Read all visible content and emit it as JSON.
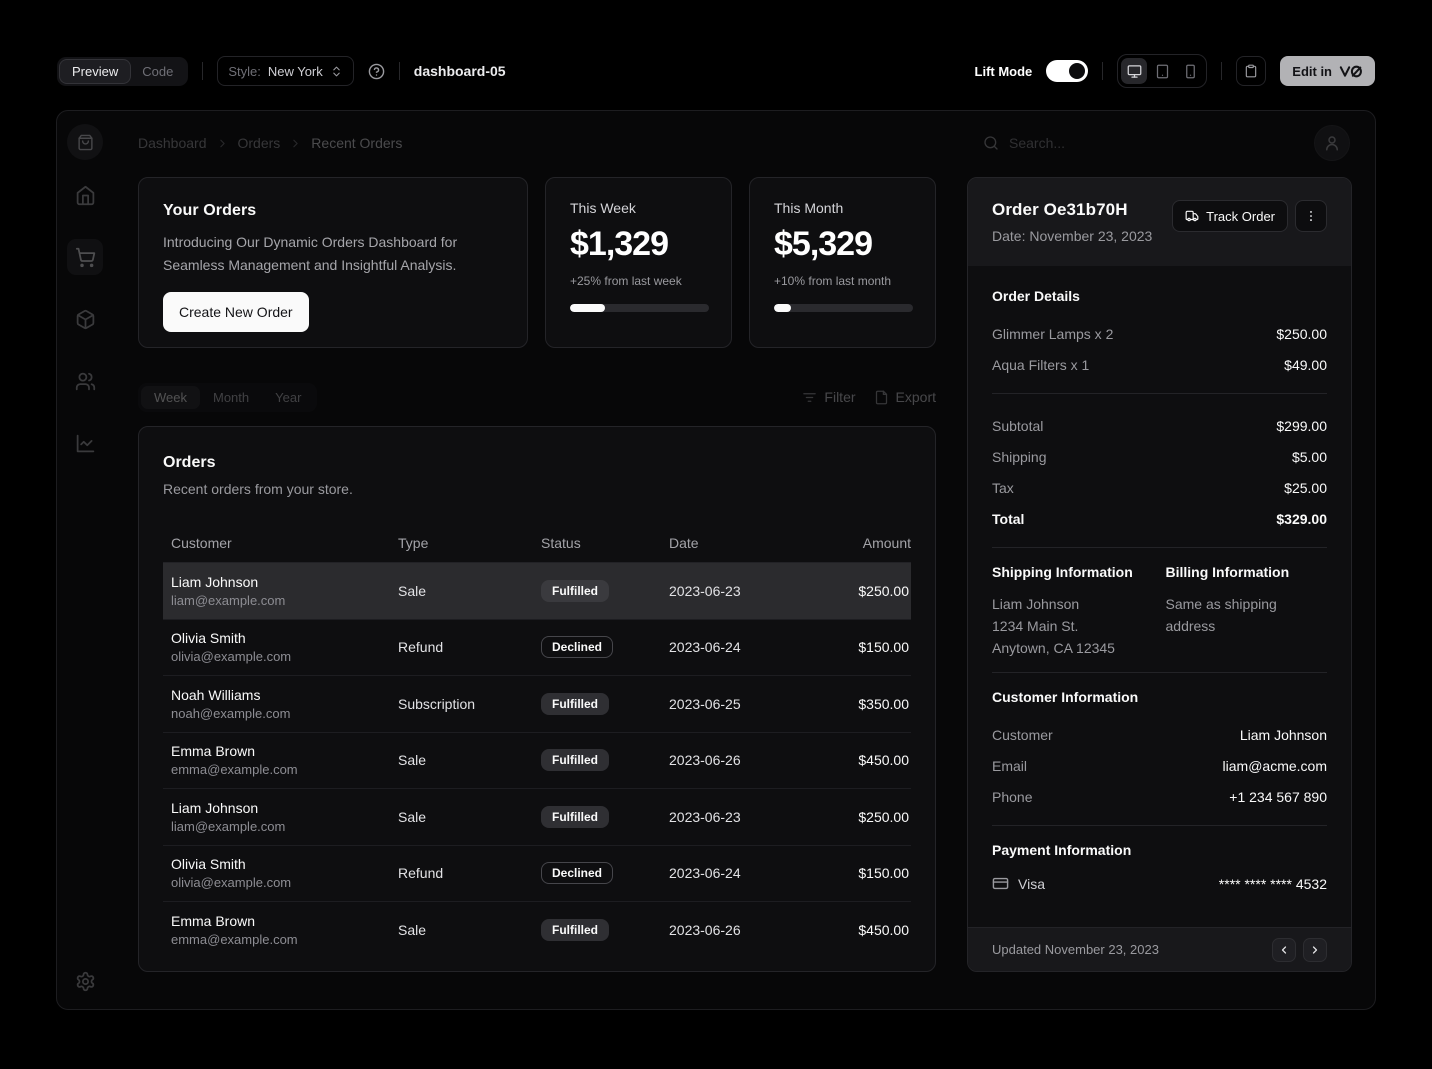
{
  "toolbar": {
    "preview_tab": "Preview",
    "code_tab": "Code",
    "style_label": "Style:",
    "style_value": "New York",
    "page_name": "dashboard-05",
    "lift_mode_label": "Lift Mode",
    "edit_in_label": "Edit in"
  },
  "header": {
    "breadcrumb": [
      "Dashboard",
      "Orders",
      "Recent Orders"
    ],
    "search_placeholder": "Search..."
  },
  "intro_card": {
    "title": "Your Orders",
    "description": "Introducing Our Dynamic Orders Dashboard for Seamless Management and Insightful Analysis.",
    "button": "Create New Order"
  },
  "stat_cards": [
    {
      "label": "This Week",
      "value": "$1,329",
      "delta": "+25% from last week",
      "progress": 25
    },
    {
      "label": "This Month",
      "value": "$5,329",
      "delta": "+10% from last month",
      "progress": 12
    }
  ],
  "period_tabs": [
    "Week",
    "Month",
    "Year"
  ],
  "table_actions": {
    "filter": "Filter",
    "export": "Export"
  },
  "orders_card": {
    "title": "Orders",
    "subtitle": "Recent orders from your store.",
    "columns": [
      "Customer",
      "Type",
      "Status",
      "Date",
      "Amount"
    ],
    "rows": [
      {
        "name": "Liam Johnson",
        "email": "liam@example.com",
        "type": "Sale",
        "status": "Fulfilled",
        "status_variant": "secondary",
        "date": "2023-06-23",
        "amount": "$250.00",
        "selected": true
      },
      {
        "name": "Olivia Smith",
        "email": "olivia@example.com",
        "type": "Refund",
        "status": "Declined",
        "status_variant": "outline",
        "date": "2023-06-24",
        "amount": "$150.00",
        "selected": false
      },
      {
        "name": "Noah Williams",
        "email": "noah@example.com",
        "type": "Subscription",
        "status": "Fulfilled",
        "status_variant": "secondary",
        "date": "2023-06-25",
        "amount": "$350.00",
        "selected": false
      },
      {
        "name": "Emma Brown",
        "email": "emma@example.com",
        "type": "Sale",
        "status": "Fulfilled",
        "status_variant": "secondary",
        "date": "2023-06-26",
        "amount": "$450.00",
        "selected": false
      },
      {
        "name": "Liam Johnson",
        "email": "liam@example.com",
        "type": "Sale",
        "status": "Fulfilled",
        "status_variant": "secondary",
        "date": "2023-06-23",
        "amount": "$250.00",
        "selected": false
      },
      {
        "name": "Olivia Smith",
        "email": "olivia@example.com",
        "type": "Refund",
        "status": "Declined",
        "status_variant": "outline",
        "date": "2023-06-24",
        "amount": "$150.00",
        "selected": false
      },
      {
        "name": "Emma Brown",
        "email": "emma@example.com",
        "type": "Sale",
        "status": "Fulfilled",
        "status_variant": "secondary",
        "date": "2023-06-26",
        "amount": "$450.00",
        "selected": false
      }
    ]
  },
  "order_panel": {
    "title": "Order Oe31b70H",
    "date": "Date: November 23, 2023",
    "track_button": "Track Order",
    "details_title": "Order Details",
    "items": [
      {
        "label": "Glimmer Lamps x 2",
        "value": "$250.00"
      },
      {
        "label": "Aqua Filters x 1",
        "value": "$49.00"
      }
    ],
    "summary": [
      {
        "label": "Subtotal",
        "value": "$299.00"
      },
      {
        "label": "Shipping",
        "value": "$5.00"
      },
      {
        "label": "Tax",
        "value": "$25.00"
      },
      {
        "label": "Total",
        "value": "$329.00",
        "style": "strong"
      }
    ],
    "shipping_title": "Shipping Information",
    "shipping_lines": [
      "Liam Johnson",
      "1234 Main St.",
      "Anytown, CA 12345"
    ],
    "billing_title": "Billing Information",
    "billing_note": "Same as shipping address",
    "customer_title": "Customer Information",
    "customer_rows": [
      {
        "label": "Customer",
        "value": "Liam Johnson"
      },
      {
        "label": "Email",
        "value": "liam@acme.com"
      },
      {
        "label": "Phone",
        "value": "+1 234 567 890"
      }
    ],
    "payment_title": "Payment Information",
    "payment_method": "Visa",
    "payment_number": "**** **** **** 4532",
    "updated": "Updated November 23, 2023"
  },
  "colors": {
    "page_bg": "#000000",
    "card_bg": "#0e0e10",
    "card_border": "#242428",
    "selected_row_bg": "#2b2b2e",
    "accent": "#fafafa",
    "muted_text": "#9a9a9f"
  }
}
